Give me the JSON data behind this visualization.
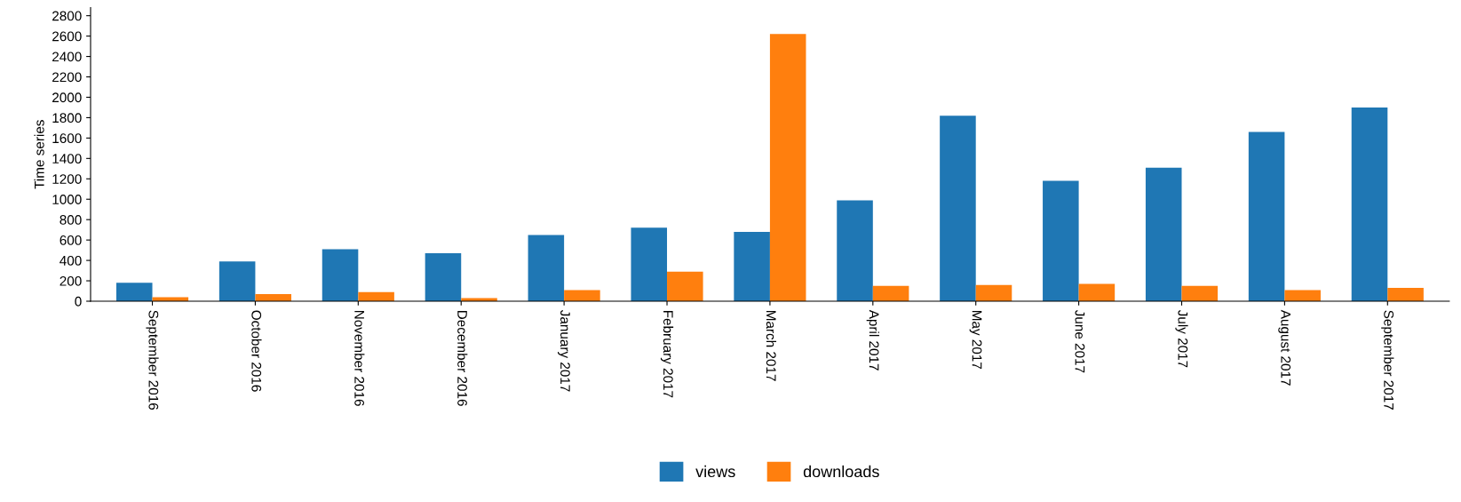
{
  "chart_data": {
    "type": "bar",
    "ylabel": "Time series",
    "categories": [
      "September 2016",
      "October 2016",
      "November 2016",
      "December 2016",
      "January 2017",
      "February 2017",
      "March 2017",
      "April 2017",
      "May 2017",
      "June 2017",
      "July 2017",
      "August 2017",
      "September 2017"
    ],
    "series": [
      {
        "name": "views",
        "color": "#1f77b4",
        "values": [
          180,
          390,
          510,
          470,
          650,
          720,
          680,
          990,
          1820,
          1180,
          1310,
          1660,
          1900
        ]
      },
      {
        "name": "downloads",
        "color": "#ff7f0e",
        "values": [
          40,
          70,
          90,
          30,
          110,
          290,
          2620,
          150,
          160,
          170,
          150,
          110,
          130
        ]
      }
    ],
    "ylim": [
      0,
      2880
    ],
    "yticks": [
      0,
      200,
      400,
      600,
      800,
      1000,
      1200,
      1400,
      1600,
      1800,
      2000,
      2200,
      2400,
      2600,
      2800
    ],
    "grid": false,
    "legend": "bottom"
  }
}
